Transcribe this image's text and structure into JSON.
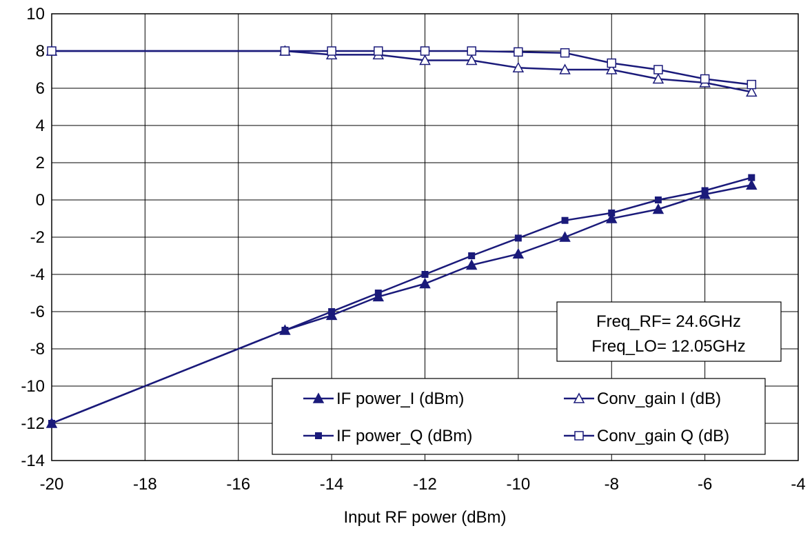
{
  "chart_data": {
    "type": "line",
    "title": "",
    "xlabel": "Input RF power (dBm)",
    "ylabel": "",
    "xlim": [
      -20,
      -4
    ],
    "ylim": [
      -14,
      10
    ],
    "xticks": [
      -20,
      -18,
      -16,
      -14,
      -12,
      -10,
      -8,
      -6,
      -4
    ],
    "yticks": [
      -14,
      -12,
      -10,
      -8,
      -6,
      -4,
      -2,
      0,
      2,
      4,
      6,
      8,
      10
    ],
    "grid": true,
    "line_color": "#1a1a7a",
    "series": [
      {
        "name": "IF power_I (dBm)",
        "marker": "filled-triangle",
        "points": [
          [
            -20,
            -12
          ],
          [
            -15,
            -7
          ],
          [
            -14,
            -6.2
          ],
          [
            -13,
            -5.2
          ],
          [
            -12,
            -4.5
          ],
          [
            -11,
            -3.5
          ],
          [
            -10,
            -2.9
          ],
          [
            -9,
            -2.0
          ],
          [
            -8,
            -1.0
          ],
          [
            -7,
            -0.5
          ],
          [
            -6,
            0.3
          ],
          [
            -5,
            0.8
          ]
        ]
      },
      {
        "name": "IF power_Q (dBm)",
        "marker": "filled-square",
        "points": [
          [
            -20,
            -12
          ],
          [
            -15,
            -7
          ],
          [
            -14,
            -6.0
          ],
          [
            -13,
            -5.0
          ],
          [
            -12,
            -4.0
          ],
          [
            -11,
            -3.0
          ],
          [
            -10,
            -2.05
          ],
          [
            -9,
            -1.1
          ],
          [
            -8,
            -0.7
          ],
          [
            -7,
            0.0
          ],
          [
            -6,
            0.5
          ],
          [
            -5,
            1.2
          ]
        ]
      },
      {
        "name": "Conv_gain I (dB)",
        "marker": "open-triangle",
        "points": [
          [
            -20,
            8
          ],
          [
            -15,
            8
          ],
          [
            -14,
            7.8
          ],
          [
            -13,
            7.8
          ],
          [
            -12,
            7.5
          ],
          [
            -11,
            7.5
          ],
          [
            -10,
            7.1
          ],
          [
            -9,
            7.0
          ],
          [
            -8,
            7.0
          ],
          [
            -7,
            6.5
          ],
          [
            -6,
            6.3
          ],
          [
            -5,
            5.8
          ]
        ]
      },
      {
        "name": "Conv_gain Q (dB)",
        "marker": "open-square",
        "points": [
          [
            -20,
            8
          ],
          [
            -15,
            8
          ],
          [
            -14,
            8.0
          ],
          [
            -13,
            8.0
          ],
          [
            -12,
            8.0
          ],
          [
            -11,
            8.0
          ],
          [
            -10,
            7.95
          ],
          [
            -9,
            7.9
          ],
          [
            -8,
            7.35
          ],
          [
            -7,
            7.0
          ],
          [
            -6,
            6.5
          ],
          [
            -5,
            6.2
          ]
        ]
      }
    ],
    "legend": {
      "placement": "bottom-right",
      "order": [
        "IF power_I (dBm)",
        "Conv_gain I (dB)",
        "IF power_Q (dBm)",
        "Conv_gain Q (dB)"
      ]
    },
    "annotation": {
      "placement": "right",
      "lines": [
        "Freq_RF= 24.6GHz",
        "Freq_LO= 12.05GHz"
      ]
    }
  }
}
